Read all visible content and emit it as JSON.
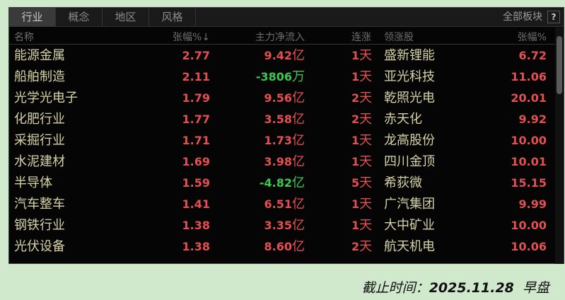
{
  "tabs": [
    "行业",
    "概念",
    "地区",
    "风格"
  ],
  "active_tab": 0,
  "all_sectors": "全部板块",
  "help": "?",
  "header": {
    "name": "名称",
    "pct": "张幅%↓",
    "flow": "主力净流入",
    "days": "连涨",
    "lead": "领涨股",
    "lead_pct": "张幅%"
  },
  "rows": [
    {
      "name": "能源金属",
      "pct": "2.77",
      "flow": "9.42",
      "unit": "亿",
      "dir": "in",
      "days": "1",
      "lead": "盛新锂能",
      "lead_pct": "6.72"
    },
    {
      "name": "船舶制造",
      "pct": "2.11",
      "flow": "-3806",
      "unit": "万",
      "dir": "out",
      "days": "1",
      "lead": "亚光科技",
      "lead_pct": "11.06"
    },
    {
      "name": "光学光电子",
      "pct": "1.79",
      "flow": "9.56",
      "unit": "亿",
      "dir": "in",
      "days": "2",
      "lead": "乾照光电",
      "lead_pct": "20.01"
    },
    {
      "name": "化肥行业",
      "pct": "1.77",
      "flow": "3.58",
      "unit": "亿",
      "dir": "in",
      "days": "2",
      "lead": "赤天化",
      "lead_pct": "9.92"
    },
    {
      "name": "采掘行业",
      "pct": "1.71",
      "flow": "1.73",
      "unit": "亿",
      "dir": "in",
      "days": "1",
      "lead": "龙高股份",
      "lead_pct": "10.00"
    },
    {
      "name": "水泥建材",
      "pct": "1.69",
      "flow": "3.98",
      "unit": "亿",
      "dir": "in",
      "days": "1",
      "lead": "四川金顶",
      "lead_pct": "10.01"
    },
    {
      "name": "半导体",
      "pct": "1.59",
      "flow": "-4.82",
      "unit": "亿",
      "dir": "out",
      "days": "5",
      "lead": "希荻微",
      "lead_pct": "15.15"
    },
    {
      "name": "汽车整车",
      "pct": "1.41",
      "flow": "6.51",
      "unit": "亿",
      "dir": "in",
      "days": "1",
      "lead": "广汽集团",
      "lead_pct": "9.99"
    },
    {
      "name": "钢铁行业",
      "pct": "1.38",
      "flow": "3.35",
      "unit": "亿",
      "dir": "in",
      "days": "1",
      "lead": "大中矿业",
      "lead_pct": "10.00"
    },
    {
      "name": "光伏设备",
      "pct": "1.38",
      "flow": "8.60",
      "unit": "亿",
      "dir": "in",
      "days": "2",
      "lead": "航天机电",
      "lead_pct": "10.06"
    }
  ],
  "day_unit": "天",
  "colors": {
    "up": "#e45050",
    "down": "#3cc850",
    "name": "#d6d2a4"
  },
  "footer": {
    "label": "截止时间：",
    "date": "2025.11.28",
    "session": "早盘"
  }
}
